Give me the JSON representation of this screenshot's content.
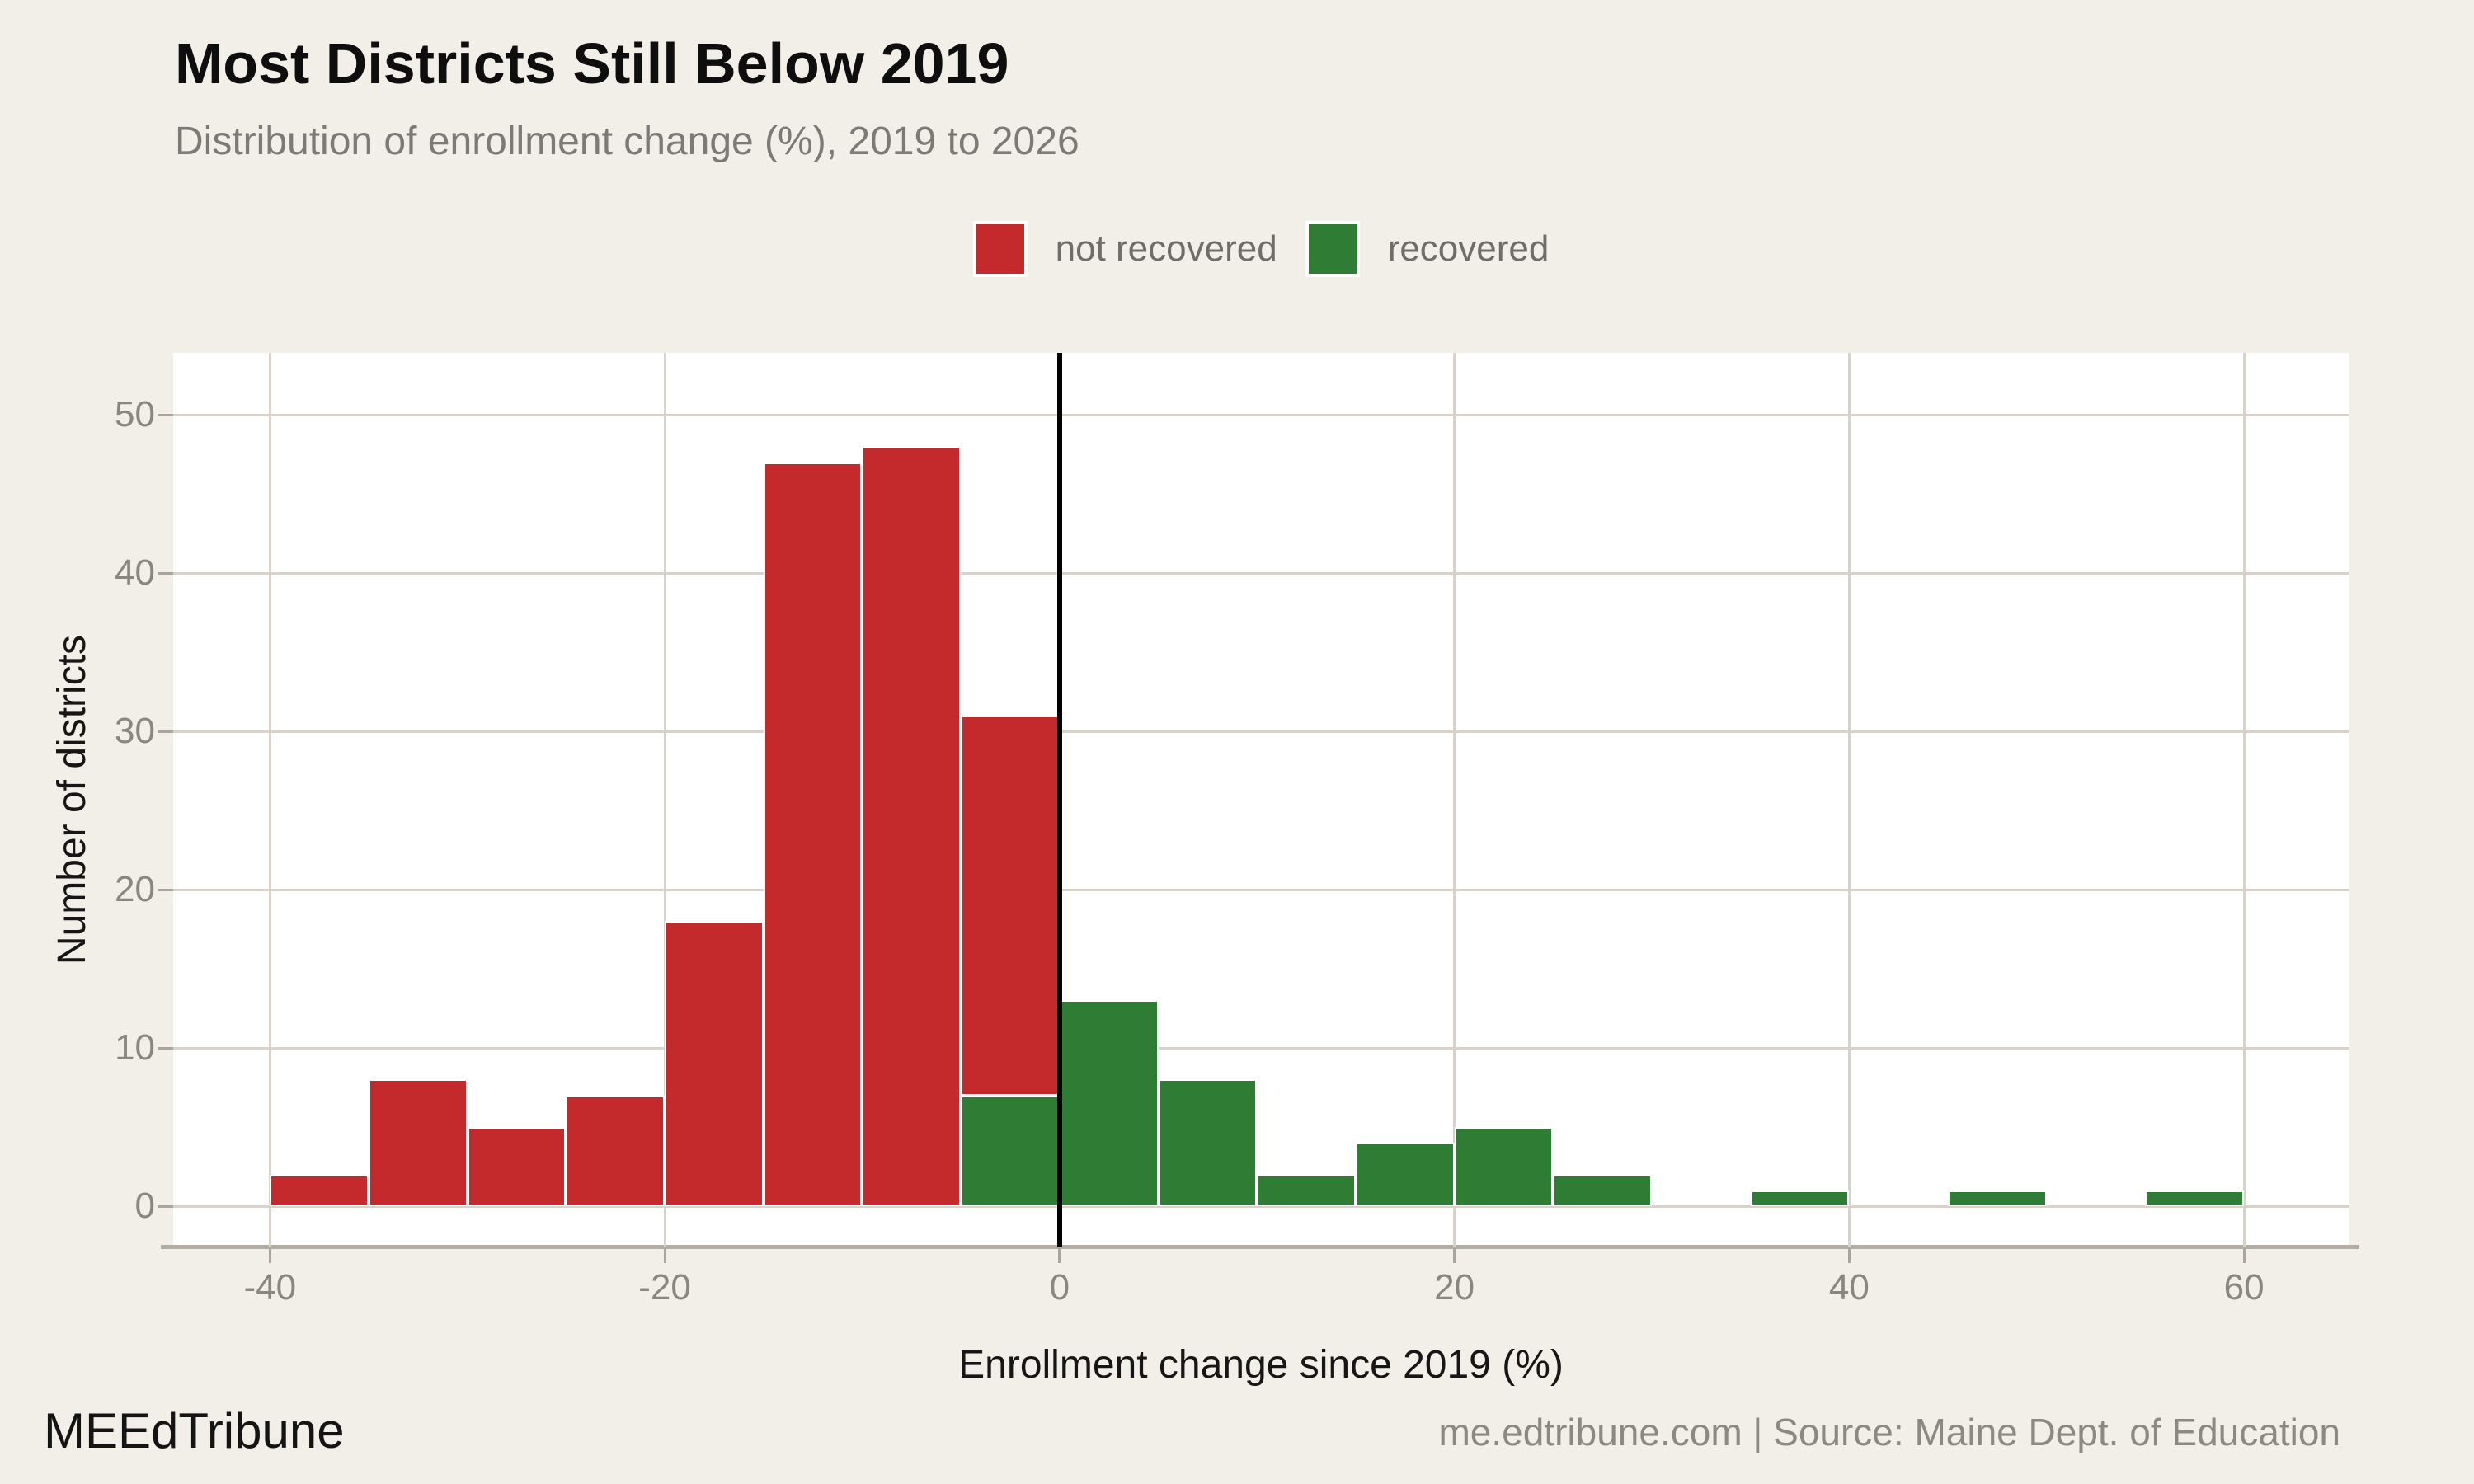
{
  "header": {
    "title": "Most Districts Still Below 2019",
    "subtitle": "Distribution of enrollment change (%), 2019 to 2026"
  },
  "legend": {
    "position": "top-center",
    "items": [
      {
        "label": "not recovered",
        "color": "#c42a2b"
      },
      {
        "label": "recovered",
        "color": "#2f7d34"
      }
    ]
  },
  "chart_data": {
    "type": "bar",
    "subtype": "stacked-histogram",
    "title": "Most Districts Still Below 2019",
    "subtitle": "Distribution of enrollment change (%), 2019 to 2026",
    "xlabel": "Enrollment change since 2019 (%)",
    "ylabel": "Number of districts",
    "xticks": [
      -40,
      -20,
      0,
      20,
      40,
      60
    ],
    "yticks": [
      0,
      10,
      20,
      30,
      40,
      50
    ],
    "xlim": [
      -44.9,
      65.3
    ],
    "ylim": [
      -2.55,
      53.91
    ],
    "grid": true,
    "zero_reference_line_x": 0,
    "bin_width": 5,
    "series_order_bottom_to_top": [
      "recovered",
      "not_recovered"
    ],
    "bins": [
      {
        "start": -40,
        "end": -35,
        "not_recovered": 2,
        "recovered": 0
      },
      {
        "start": -35,
        "end": -30,
        "not_recovered": 8,
        "recovered": 0
      },
      {
        "start": -30,
        "end": -25,
        "not_recovered": 5,
        "recovered": 0
      },
      {
        "start": -25,
        "end": -20,
        "not_recovered": 7,
        "recovered": 0
      },
      {
        "start": -20,
        "end": -15,
        "not_recovered": 18,
        "recovered": 0
      },
      {
        "start": -15,
        "end": -10,
        "not_recovered": 47,
        "recovered": 0
      },
      {
        "start": -10,
        "end": -5,
        "not_recovered": 48,
        "recovered": 0
      },
      {
        "start": -5,
        "end": 0,
        "not_recovered": 24,
        "recovered": 7
      },
      {
        "start": 0,
        "end": 5,
        "not_recovered": 0,
        "recovered": 13
      },
      {
        "start": 5,
        "end": 10,
        "not_recovered": 0,
        "recovered": 8
      },
      {
        "start": 10,
        "end": 15,
        "not_recovered": 0,
        "recovered": 2
      },
      {
        "start": 15,
        "end": 20,
        "not_recovered": 0,
        "recovered": 4
      },
      {
        "start": 20,
        "end": 25,
        "not_recovered": 0,
        "recovered": 5
      },
      {
        "start": 25,
        "end": 30,
        "not_recovered": 0,
        "recovered": 2
      },
      {
        "start": 30,
        "end": 35,
        "not_recovered": 0,
        "recovered": 0
      },
      {
        "start": 35,
        "end": 40,
        "not_recovered": 0,
        "recovered": 1
      },
      {
        "start": 40,
        "end": 45,
        "not_recovered": 0,
        "recovered": 0
      },
      {
        "start": 45,
        "end": 50,
        "not_recovered": 0,
        "recovered": 1
      },
      {
        "start": 50,
        "end": 55,
        "not_recovered": 0,
        "recovered": 0
      },
      {
        "start": 55,
        "end": 60,
        "not_recovered": 0,
        "recovered": 1
      }
    ],
    "colors": {
      "not_recovered": "#c42a2b",
      "recovered": "#2f7d34",
      "background": "#f2efe8",
      "plot_background": "#ffffff",
      "zero_line": "#000000"
    }
  },
  "footer": {
    "brand": "MEEdTribune",
    "source": "me.edtribune.com | Source: Maine Dept. of Education"
  }
}
